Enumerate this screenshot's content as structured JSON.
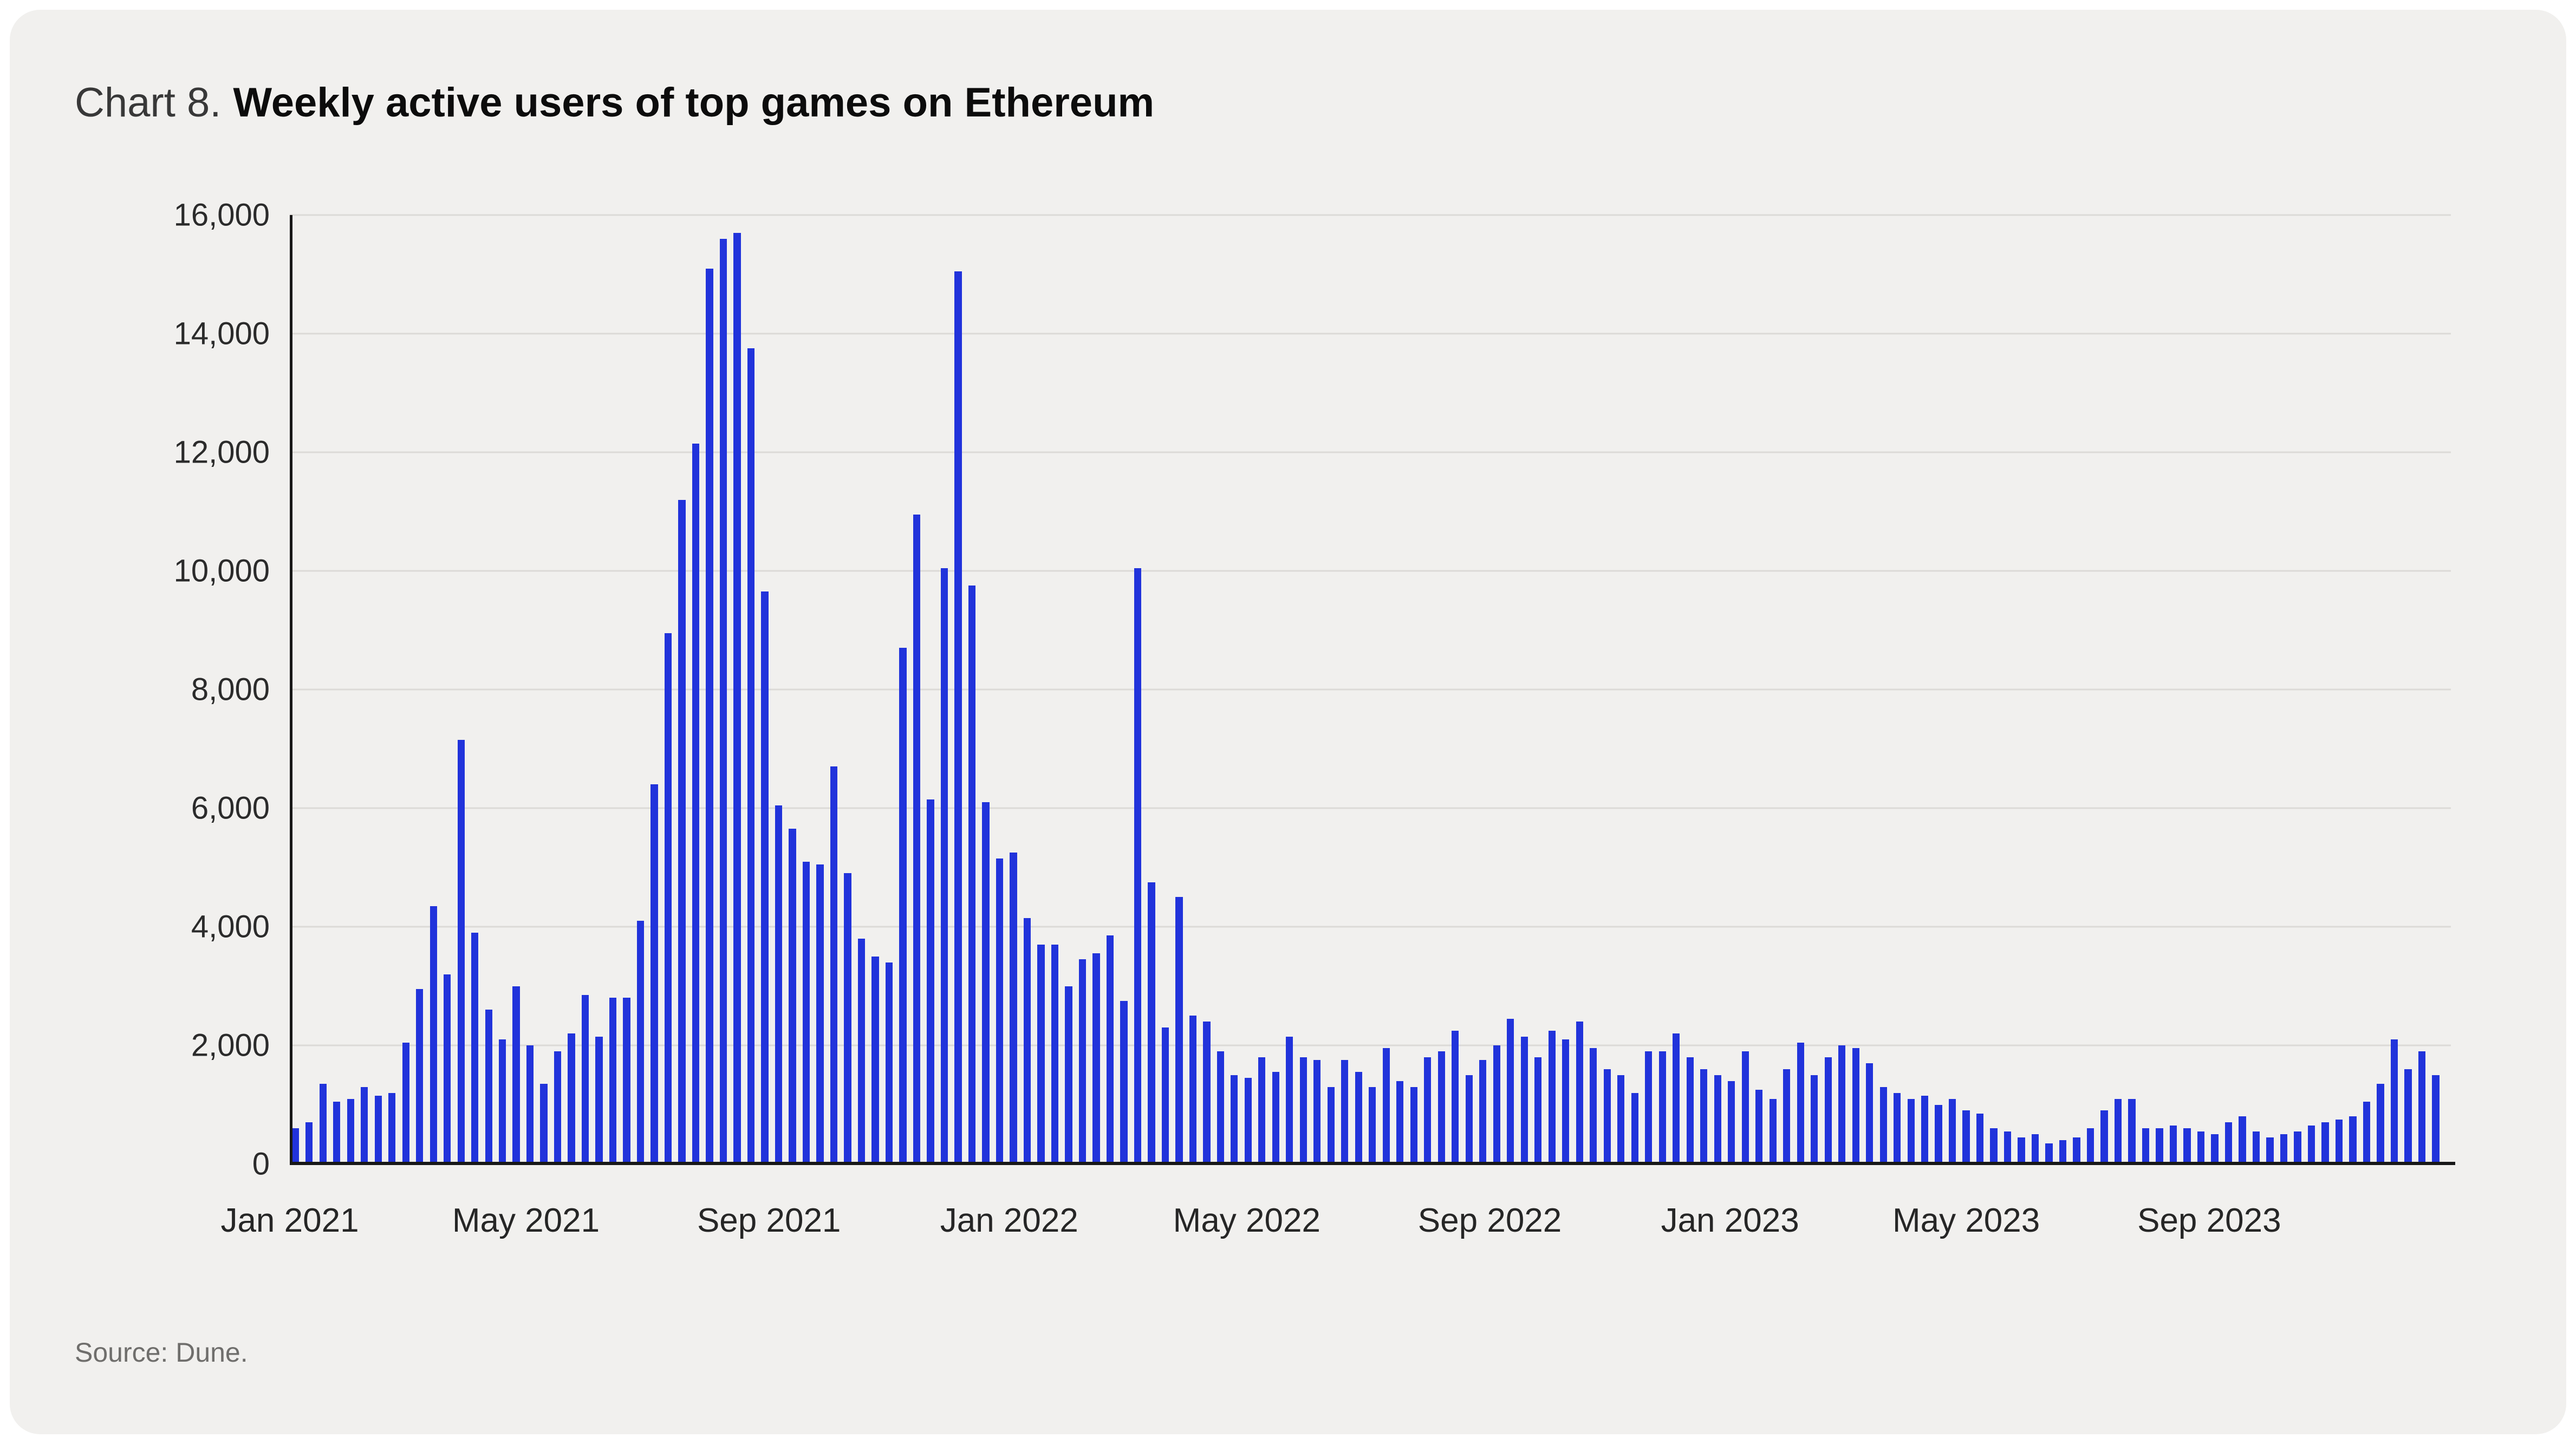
{
  "header": {
    "prefix": "Chart 8.",
    "title": "Weekly active users of top games on Ethereum"
  },
  "footer": {
    "source": "Source: Dune."
  },
  "colors": {
    "card_background": "#f1f0ee",
    "bar": "#2133db",
    "gridline": "#dcdad7",
    "axis": "#181818",
    "title_text": "#0c0c0c",
    "muted_text": "#6f6e6c"
  },
  "chart_data": {
    "type": "bar",
    "title": "Weekly active users of top games on Ethereum",
    "xlabel": "",
    "ylabel": "Weekly active users",
    "grid": true,
    "legend": "none",
    "ylim": [
      0,
      16000
    ],
    "y_ticks": [
      {
        "value": 0,
        "label": "0"
      },
      {
        "value": 2000,
        "label": "2,000"
      },
      {
        "value": 4000,
        "label": "4,000"
      },
      {
        "value": 6000,
        "label": "6,000"
      },
      {
        "value": 8000,
        "label": "8,000"
      },
      {
        "value": 10000,
        "label": "10,000"
      },
      {
        "value": 12000,
        "label": "12,000"
      },
      {
        "value": 14000,
        "label": "14,000"
      },
      {
        "value": 16000,
        "label": "16,000"
      }
    ],
    "x_total_weeks": 156.5,
    "x_ticks": [
      {
        "label": "Jan 2021",
        "week": 0
      },
      {
        "label": "May 2021",
        "week": 17.1
      },
      {
        "label": "Sep 2021",
        "week": 34.7
      },
      {
        "label": "Jan 2022",
        "week": 52.1
      },
      {
        "label": "May 2022",
        "week": 69.3
      },
      {
        "label": "Sep 2022",
        "week": 86.9
      },
      {
        "label": "Jan 2023",
        "week": 104.3
      },
      {
        "label": "May 2023",
        "week": 121.4
      },
      {
        "label": "Sep 2023",
        "week": 139.0
      }
    ],
    "bar_color": "#2133db",
    "values": [
      600,
      700,
      1350,
      1050,
      1100,
      1300,
      1150,
      1200,
      2050,
      2950,
      4350,
      3200,
      7150,
      3900,
      2600,
      2100,
      3000,
      2000,
      1350,
      1900,
      2200,
      2850,
      2150,
      2800,
      2800,
      4100,
      6400,
      8950,
      11200,
      12150,
      15100,
      15600,
      15700,
      13750,
      9650,
      6050,
      5650,
      5100,
      5050,
      6700,
      4900,
      3800,
      3500,
      3400,
      8700,
      10950,
      6150,
      10050,
      15050,
      9750,
      6100,
      5150,
      5250,
      4150,
      3700,
      3700,
      3000,
      3450,
      3550,
      3850,
      2750,
      10050,
      4750,
      2300,
      4500,
      2500,
      2400,
      1900,
      1500,
      1450,
      1800,
      1550,
      2150,
      1800,
      1750,
      1300,
      1750,
      1550,
      1300,
      1950,
      1400,
      1300,
      1800,
      1900,
      2250,
      1500,
      1750,
      2000,
      2450,
      2150,
      1800,
      2250,
      2100,
      2400,
      1950,
      1600,
      1500,
      1200,
      1900,
      1900,
      2200,
      1800,
      1600,
      1500,
      1400,
      1900,
      1250,
      1100,
      1600,
      2050,
      1500,
      1800,
      2000,
      1950,
      1700,
      1300,
      1200,
      1100,
      1150,
      1000,
      1100,
      900,
      850,
      600,
      550,
      450,
      500,
      350,
      400,
      450,
      600,
      900,
      1100,
      1100,
      600,
      600,
      650,
      600,
      550,
      500,
      700,
      800,
      550,
      450,
      500,
      550,
      650,
      700,
      750,
      800,
      1050,
      1350,
      2100,
      1600,
      1900,
      1500
    ]
  }
}
